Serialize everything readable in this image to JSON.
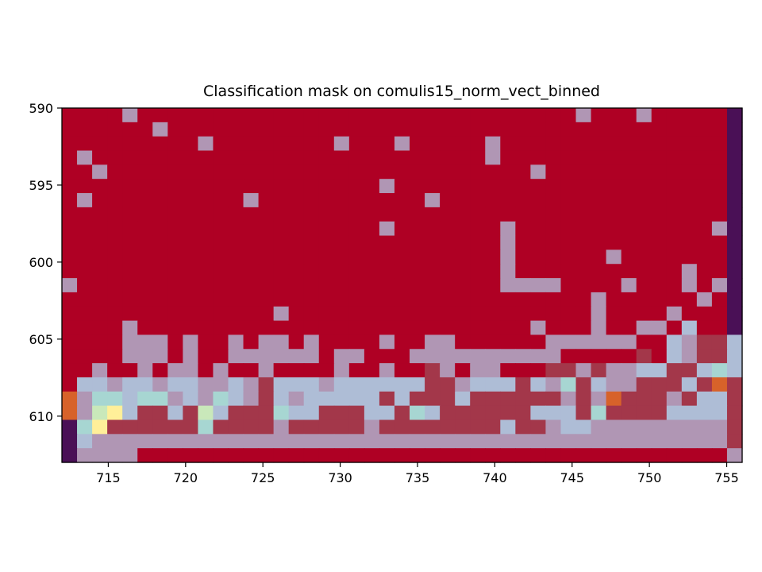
{
  "chart_data": {
    "type": "heatmap",
    "title": "Classification mask on comulis15_norm_vect_binned",
    "xlabel": "",
    "ylabel": "",
    "x_range": [
      712,
      756
    ],
    "y_range": [
      590,
      613
    ],
    "y_inverted": true,
    "x_ticks": [
      715,
      720,
      725,
      730,
      735,
      740,
      745,
      750,
      755
    ],
    "y_ticks": [
      590,
      595,
      600,
      605,
      610
    ],
    "grid": false,
    "colors": {
      "red": "#af0024",
      "mauve": "#b096b4",
      "orange": "#d7622a",
      "darkred": "#a3374a",
      "teal": "#a7d6d2",
      "lightblue": "#aebdd6",
      "lightgreen": "#c9e8ba",
      "yellow": "#ffef99",
      "purple": "#4a1056"
    },
    "palette": {
      "R": "red",
      "M": "mauve",
      "O": "orange",
      "D": "darkred",
      "T": "teal",
      "B": "lightblue",
      "G": "lightgreen",
      "Y": "yellow",
      "P": "purple"
    },
    "grid_rows": [
      "RRRRMRRRRRRRRRRRRRRRRRRRRRRRRRRRRRMRRRMRRRRRP",
      "RRRRRRMRRRRRRRRRRRRRRRRRRRRRRRRRRRRRRRRRRRRRP",
      "RRRRRRRRRMRRRRRRRRMRRRMRRRRRMRRRRRRRRRRRRRRRP",
      "RMRRRRRRRRRRRRRRRRRRRRRRRRRRMRRRRRRRRRRRRRRRP",
      "RRMRRRRRRRRRRRRRRRRRRRRRRRRRRRRMRRRRRRRRRRRRP",
      "RRRRRRRRRRRRRRRRRRRRRMRRRRRRRRRRRRRRRRRRRRRRP",
      "RMRRRRRRRRRRMRRRRRRRRRRRMRRRRRRRRRRRRRRRRRRRP",
      "RRRRRRRRRRRRRRRRRRRRRRRRRRRRRRRRRRRRRRRRRRRRP",
      "RRRRRRRRRRRRRRRRRRRRRMRRRRRRRMRRRRRRRRRRRRRMP",
      "RRRRRRRRRRRRRRRRRRRRRRRRRRRRRMRRRRRRRRRRRRRRP",
      "RRRRRRRRRRRRRRRRRRRRRRRRRRRRRMRRRRRRMRRRRRRRP",
      "RRRRRRRRRRRRRRRRRRRRRRRRRRRRRMRRRRRRRRRRRMRRP",
      "MRRRRRRRRRRRRRRRRRRRRRRRRRRRRMMMMRRRRMRRRMRMP",
      "RRRRRRRRRRRRRRRRRRRRRRRRRRRRRRRRRRRMRRRRRRMRP",
      "RRRRRRRRRRRRRRMRRRRRRRRRRRRRRRRRRRRMRRRRMRRRP",
      "RRRRMRRRRRRRRRRRRRRRRRRRRRRRRRRMRRRMRRMMRBRRP",
      "RRRRMMMRMRRMRMMRMRRRRMRRMMRRRRRRMMMMMMRRBMDDB",
      "RRRRMMMRMRRMMMMMMRMMRRRMMMMMMMMMMRRRRRDRBMDDB",
      "RRMRRMRMMRMRRMRRRRMRRMRRDMRMMRRRDDMDMMBBDDBTB",
      "RBBMBBMBBMMBMDBBBMBBBBBBDDMBBBDBMTDBMMDDDBDOD",
      "OMTTBTTMBMTBMDBMBBBBBDBDDDBDDDDDDMDMODDDMDBBD",
      "OMGYBDDBDGBDDDTBBDDDBBDTBDDDDDDBBBDTDDDDBBBBD",
      "PTYDDDDDDTDDDDMDDDDDMDDDDDDDDBDDMBBMMMMMMMMMD",
      "PBMMMMMMMMMMMMMMMMMMMMMMMMMMMMMMMMMMMMMMMMMMD",
      "PMMMMRRRRRRRRRRRRRRRRRRRRRRRRRRRRRRRRRRRRRRRM"
    ]
  }
}
